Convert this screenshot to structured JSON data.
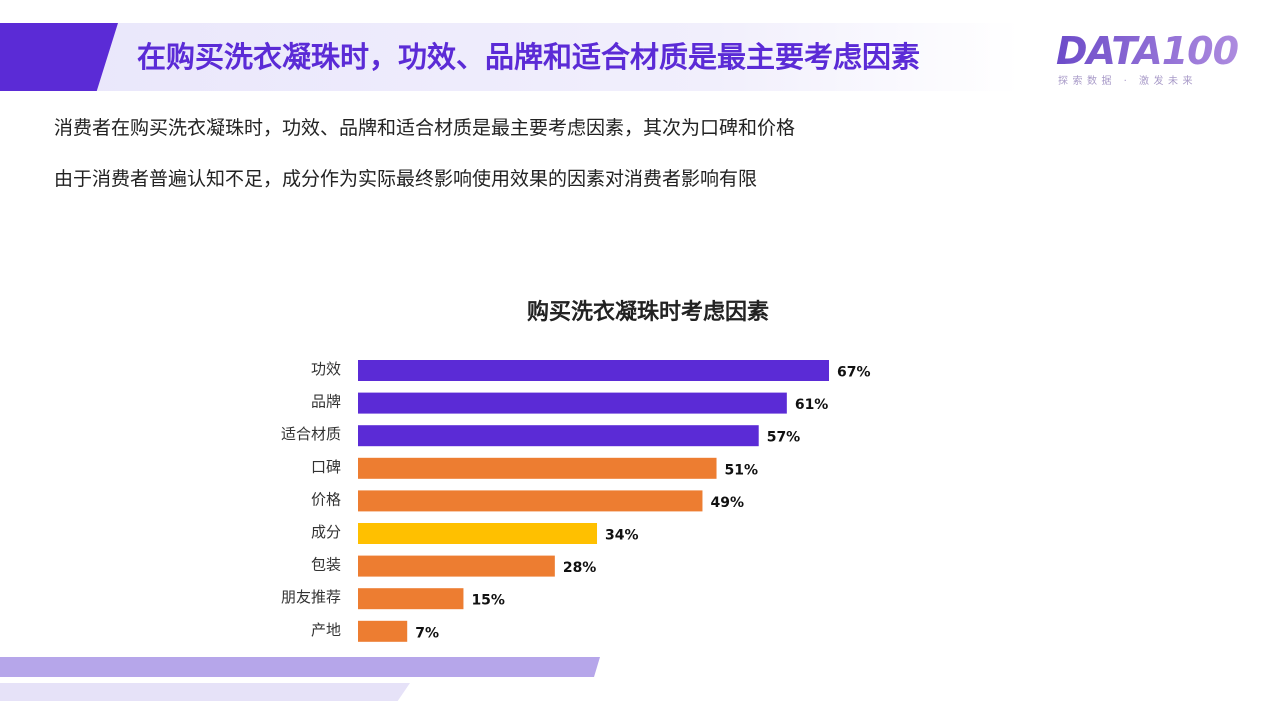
{
  "header": {
    "title": "在购买洗衣凝珠时，功效、品牌和适合材质是最主要考虑因素",
    "logo_text": "DATA100",
    "logo_tagline": "探索数据 · 激发未来"
  },
  "intro": {
    "line1": "消费者在购买洗衣凝珠时，功效、品牌和适合材质是最主要考虑因素，其次为口碑和价格",
    "line2": "由于消费者普遍认知不足，成分作为实际最终影响使用效果的因素对消费者影响有限"
  },
  "chart_data": {
    "type": "bar",
    "orientation": "horizontal",
    "title": "购买洗衣凝珠时考虑因素",
    "categories": [
      "功效",
      "品牌",
      "适合材质",
      "口碑",
      "价格",
      "成分",
      "包装",
      "朋友推荐",
      "产地"
    ],
    "values": [
      67,
      61,
      57,
      51,
      49,
      34,
      28,
      15,
      7
    ],
    "value_labels": [
      "67%",
      "61%",
      "57%",
      "51%",
      "49%",
      "34%",
      "28%",
      "15%",
      "7%"
    ],
    "bar_colors": [
      "#5b2bd6",
      "#5b2bd6",
      "#5b2bd6",
      "#ed7d31",
      "#ed7d31",
      "#ffc000",
      "#ed7d31",
      "#ed7d31",
      "#ed7d31"
    ],
    "xlim": [
      0,
      100
    ],
    "grid": false,
    "legend": "none"
  }
}
